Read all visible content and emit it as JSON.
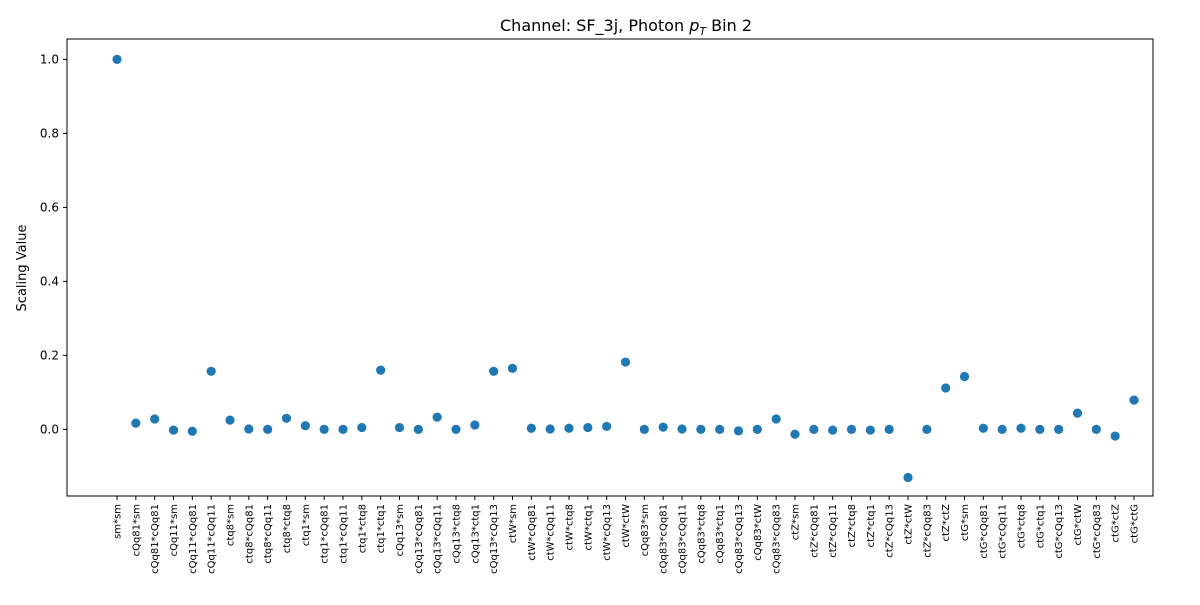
{
  "chart_data": {
    "type": "scatter",
    "title": "Channel: SF_3j, Photon p_T Bin 2",
    "title_parts": {
      "prefix": "Channel: SF_3j, Photon ",
      "p": "p",
      "sub": "T",
      "suffix": " Bin 2"
    },
    "xlabel": "",
    "ylabel": "Scaling Value",
    "ylim": [
      -0.18,
      1.055
    ],
    "yticks": [
      0.0,
      0.2,
      0.4,
      0.6,
      0.8,
      1.0
    ],
    "ytick_labels": [
      "0.0",
      "0.2",
      "0.4",
      "0.6",
      "0.8",
      "1.0"
    ],
    "grid": false,
    "marker_color": "#1f77b4",
    "categories": [
      "sm*sm",
      "cQq81*sm",
      "cQq81*cQq81",
      "cQq11*sm",
      "cQq11*cQq81",
      "cQq11*cQq11",
      "ctq8*sm",
      "ctq8*cQq81",
      "ctq8*cQq11",
      "ctq8*ctq8",
      "ctq1*sm",
      "ctq1*cQq81",
      "ctq1*cQq11",
      "ctq1*ctq8",
      "ctq1*ctq1",
      "cQq13*sm",
      "cQq13*cQq81",
      "cQq13*cQq11",
      "cQq13*ctq8",
      "cQq13*ctq1",
      "cQq13*cQq13",
      "ctW*sm",
      "ctW*cQq81",
      "ctW*cQq11",
      "ctW*ctq8",
      "ctW*ctq1",
      "ctW*cQq13",
      "ctW*ctW",
      "cQq83*sm",
      "cQq83*cQq81",
      "cQq83*cQq11",
      "cQq83*ctq8",
      "cQq83*ctq1",
      "cQq83*cQq13",
      "cQq83*ctW",
      "cQq83*cQq83",
      "ctZ*sm",
      "ctZ*cQq81",
      "ctZ*cQq11",
      "ctZ*ctq8",
      "ctZ*ctq1",
      "ctZ*cQq13",
      "ctZ*ctW",
      "ctZ*cQq83",
      "ctZ*ctZ",
      "ctG*sm",
      "ctG*cQq81",
      "ctG*cQq11",
      "ctG*ctq8",
      "ctG*ctq1",
      "ctG*cQq13",
      "ctG*ctW",
      "ctG*cQq83",
      "ctG*ctZ",
      "ctG*ctG"
    ],
    "values": [
      1.0,
      0.017,
      0.028,
      -0.002,
      -0.005,
      0.157,
      0.025,
      0.001,
      0.0,
      0.03,
      0.01,
      0.0,
      0.0,
      0.005,
      0.16,
      0.005,
      0.0,
      0.033,
      0.0,
      0.012,
      0.157,
      0.165,
      0.003,
      0.001,
      0.003,
      0.005,
      0.008,
      0.182,
      0.0,
      0.006,
      0.001,
      0.0,
      0.0,
      -0.004,
      0.0,
      0.028,
      -0.013,
      0.0,
      -0.002,
      0.0,
      -0.002,
      0.0,
      -0.13,
      0.0,
      0.112,
      0.143,
      0.003,
      0.0,
      0.003,
      0.0,
      0.0,
      0.044,
      0.0,
      -0.018,
      0.079
    ]
  }
}
